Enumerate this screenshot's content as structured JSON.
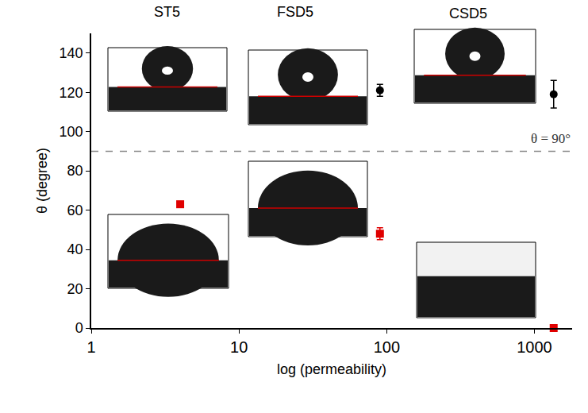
{
  "chart_data": {
    "type": "scatter",
    "x_label": "log (permeability)",
    "y_label": "θ (degree)",
    "log": "x",
    "grid": false,
    "xlim": [
      1,
      1800
    ],
    "xticks": [
      1,
      10,
      100,
      1000
    ],
    "ylim": [
      0,
      150
    ],
    "yticks": [
      0,
      20,
      40,
      60,
      80,
      100,
      120,
      140
    ],
    "series": [
      {
        "color": "#000000",
        "marker": "circle",
        "x": [
          90,
          1350
        ],
        "values": [
          121,
          119
        ],
        "errors": [
          3,
          7
        ]
      },
      {
        "color": "#e00000",
        "marker": "square",
        "x": [
          4,
          90,
          1350
        ],
        "values": [
          63,
          48,
          0
        ],
        "errors": [
          0,
          3,
          0
        ]
      }
    ],
    "hline": {
      "y": 90,
      "label": "θ = 90°",
      "color": "#888888",
      "line_style": "dash"
    },
    "insets": [
      {
        "label": "ST5"
      },
      {
        "label": "FSD5"
      },
      {
        "label": "CSD5"
      }
    ]
  }
}
